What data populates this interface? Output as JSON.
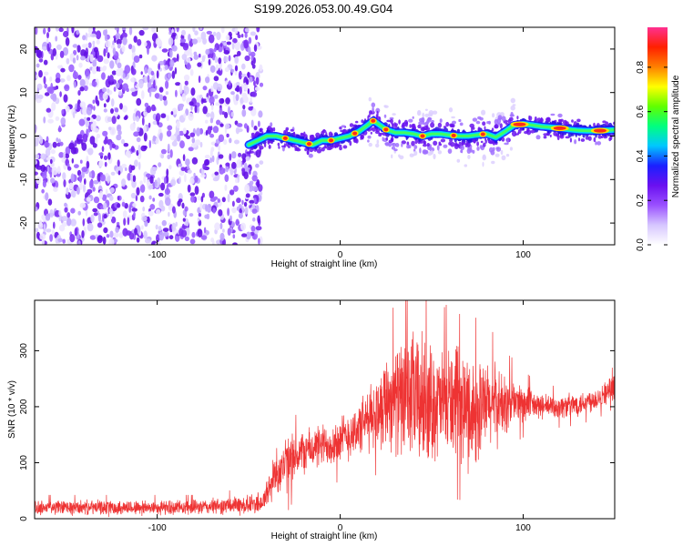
{
  "title": "S199.2026.053.00.49.G04",
  "chart_data": [
    {
      "type": "heatmap",
      "name": "spectrogram",
      "xlabel": "Height of straight line (km)",
      "ylabel": "Frequency (Hz)",
      "xlim": [
        -167,
        150
      ],
      "ylim": [
        -25,
        25
      ],
      "xticks": [
        -100,
        0,
        100
      ],
      "xtick_labels": [
        "-100",
        "0",
        "100"
      ],
      "yticks": [
        20,
        10,
        0,
        -10,
        -20
      ],
      "ytick_labels": [
        "20",
        "10",
        "0",
        "-10",
        "-20"
      ],
      "noise_region_x": [
        -167,
        -47
      ],
      "ridge": {
        "x": [
          -50,
          -45,
          -40,
          -35,
          -30,
          -25,
          -20,
          -15,
          -10,
          -5,
          0,
          5,
          10,
          15,
          18,
          20,
          25,
          30,
          35,
          40,
          45,
          50,
          55,
          60,
          65,
          70,
          75,
          80,
          85,
          90,
          95,
          100,
          105,
          110,
          115,
          120,
          125,
          130,
          135,
          140,
          145,
          150
        ],
        "freq": [
          -2,
          -1,
          0,
          0,
          -0.5,
          -1,
          -1.5,
          -2,
          -1,
          -1,
          -0.5,
          0,
          1,
          2.5,
          3.5,
          3,
          1.5,
          0.8,
          0.8,
          0.5,
          0,
          0.5,
          0.5,
          0.2,
          0,
          0,
          0.3,
          0.5,
          -0.3,
          1,
          2.5,
          2.8,
          2.5,
          2.2,
          2,
          1.8,
          1.5,
          1.3,
          1.2,
          1.2,
          1.3,
          1.4
        ]
      }
    },
    {
      "type": "line",
      "name": "snr",
      "xlabel": "Height of straight line (km)",
      "ylabel": "SNR (10 * v/v)",
      "xlim": [
        -167,
        150
      ],
      "ylim": [
        0,
        390
      ],
      "xticks": [
        -100,
        0,
        100
      ],
      "xtick_labels": [
        "-100",
        "0",
        "100"
      ],
      "yticks": [
        0,
        100,
        200,
        300
      ],
      "ytick_labels": [
        "0",
        "100",
        "200",
        "300"
      ],
      "color": "#ee3333",
      "envelope": {
        "x": [
          -167,
          -120,
          -80,
          -50,
          -42,
          -38,
          -35,
          -30,
          -25,
          -20,
          -10,
          0,
          10,
          20,
          25,
          30,
          35,
          40,
          45,
          50,
          55,
          60,
          65,
          70,
          75,
          80,
          85,
          90,
          95,
          100,
          110,
          120,
          130,
          140,
          150
        ],
        "mean": [
          20,
          20,
          20,
          25,
          30,
          60,
          85,
          95,
          110,
          120,
          130,
          140,
          160,
          190,
          215,
          215,
          210,
          215,
          210,
          205,
          205,
          210,
          200,
          195,
          190,
          200,
          205,
          200,
          210,
          205,
          200,
          200,
          205,
          215,
          235
        ],
        "amp": [
          15,
          15,
          15,
          20,
          25,
          40,
          50,
          60,
          50,
          45,
          45,
          50,
          55,
          75,
          100,
          110,
          120,
          140,
          140,
          120,
          110,
          120,
          110,
          120,
          110,
          90,
          85,
          65,
          50,
          40,
          25,
          25,
          25,
          25,
          25
        ]
      }
    }
  ],
  "colorbar": {
    "label": "Normalized spectral amplitude",
    "range": [
      0.0,
      0.98
    ],
    "ticks": [
      0.0,
      0.2,
      0.4,
      0.6,
      0.8
    ],
    "tick_labels": [
      "0.0",
      "0.2",
      "0.4",
      "0.6",
      "0.8"
    ],
    "colors": [
      "#ffffff",
      "#d6c6ff",
      "#9a50ff",
      "#6a10f0",
      "#1a20ff",
      "#00c8ff",
      "#00ff80",
      "#60ff00",
      "#ffff00",
      "#ff8000",
      "#ff2000",
      "#ff3090"
    ]
  }
}
